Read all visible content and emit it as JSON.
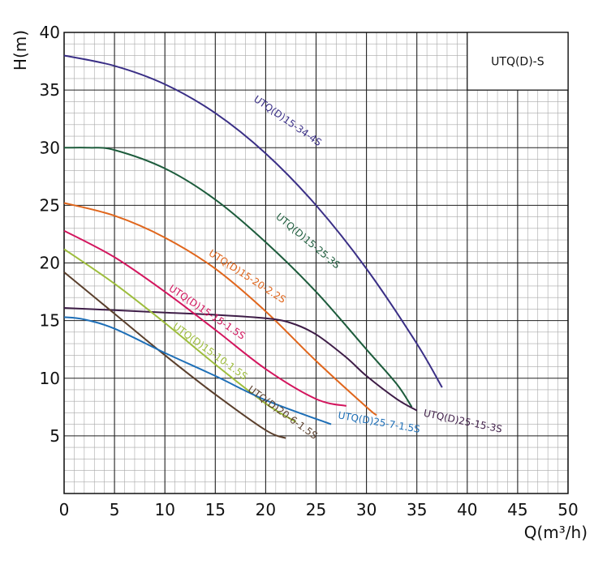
{
  "chart_data": {
    "type": "line",
    "title": "",
    "xlabel": "Q(m³/h)",
    "ylabel": "H(m)",
    "xlim": [
      0,
      50
    ],
    "ylim": [
      0,
      40
    ],
    "x_ticks": [
      0,
      5,
      10,
      15,
      20,
      25,
      30,
      35,
      40,
      45,
      50
    ],
    "y_ticks": [
      5,
      10,
      15,
      20,
      25,
      30,
      35,
      40
    ],
    "grid": true,
    "model_label": "UTQ(D)-S",
    "series": [
      {
        "name": "UTQ(D)15-34-4S",
        "color": "#3a2f86",
        "x": [
          0,
          5,
          10,
          15,
          20,
          25,
          30,
          35,
          37.5
        ],
        "y": [
          38,
          37.1,
          35.5,
          33,
          29.5,
          25,
          19.5,
          13,
          9.2
        ],
        "label_at": [
          22,
          32.1
        ],
        "label_angle": 35
      },
      {
        "name": "UTQ(D)15-25-3S",
        "color": "#1d5c3c",
        "x": [
          0,
          2.5,
          5,
          10,
          15,
          20,
          25,
          30,
          33,
          34.5
        ],
        "y": [
          30,
          30,
          29.8,
          28.2,
          25.5,
          21.8,
          17.5,
          12.5,
          9.5,
          7.5
        ],
        "label_at": [
          24,
          21.7
        ],
        "label_angle": 40
      },
      {
        "name": "UTQ(D)15-20-2.2S",
        "color": "#e0661c",
        "x": [
          0,
          5,
          10,
          15,
          20,
          25,
          30,
          31
        ],
        "y": [
          25.2,
          24.1,
          22.2,
          19.5,
          15.8,
          11.5,
          7.5,
          6.8
        ],
        "label_at": [
          18,
          18.6
        ],
        "label_angle": 33
      },
      {
        "name": "UTQ(D)25-15-3S",
        "color": "#3e1d47",
        "x": [
          0,
          5,
          10,
          15,
          20,
          22.5,
          25,
          28,
          30,
          33,
          35
        ],
        "y": [
          16.1,
          15.9,
          15.7,
          15.5,
          15.2,
          14.8,
          13.8,
          11.8,
          10.2,
          8.2,
          7.2
        ],
        "label_at": [
          39.5,
          6
        ],
        "label_angle": 12
      },
      {
        "name": "UTQ(D)15-15-1.5S",
        "color": "#d3165e",
        "x": [
          0,
          5,
          10,
          15,
          20,
          25,
          28
        ],
        "y": [
          22.8,
          20.5,
          17.5,
          14.2,
          10.8,
          8.2,
          7.6
        ],
        "label_at": [
          14,
          15.5
        ],
        "label_angle": 34
      },
      {
        "name": "UTQ(D)15-10-1.5S",
        "color": "#9dbd3c",
        "x": [
          0,
          5,
          10,
          15,
          20,
          23
        ],
        "y": [
          21.2,
          18.2,
          14.8,
          11.2,
          7.8,
          6.2
        ],
        "label_at": [
          14.3,
          12.1
        ],
        "label_angle": 36
      },
      {
        "name": "UTQ(D)20-6-1.5S",
        "color": "#5a3f2c",
        "x": [
          0,
          5,
          10,
          15,
          20,
          22
        ],
        "y": [
          19.2,
          15.6,
          12,
          8.6,
          5.5,
          4.8
        ],
        "label_at": [
          21.5,
          6.8
        ],
        "label_angle": 36
      },
      {
        "name": "UTQ(D)25-7-1.5S",
        "color": "#1e6fb7",
        "x": [
          0,
          2,
          5,
          10,
          15,
          20,
          26.5
        ],
        "y": [
          15.3,
          15.1,
          14.3,
          12.2,
          10.2,
          8.1,
          6
        ],
        "label_at": [
          31.2,
          5.9
        ],
        "label_angle": 10
      }
    ]
  }
}
